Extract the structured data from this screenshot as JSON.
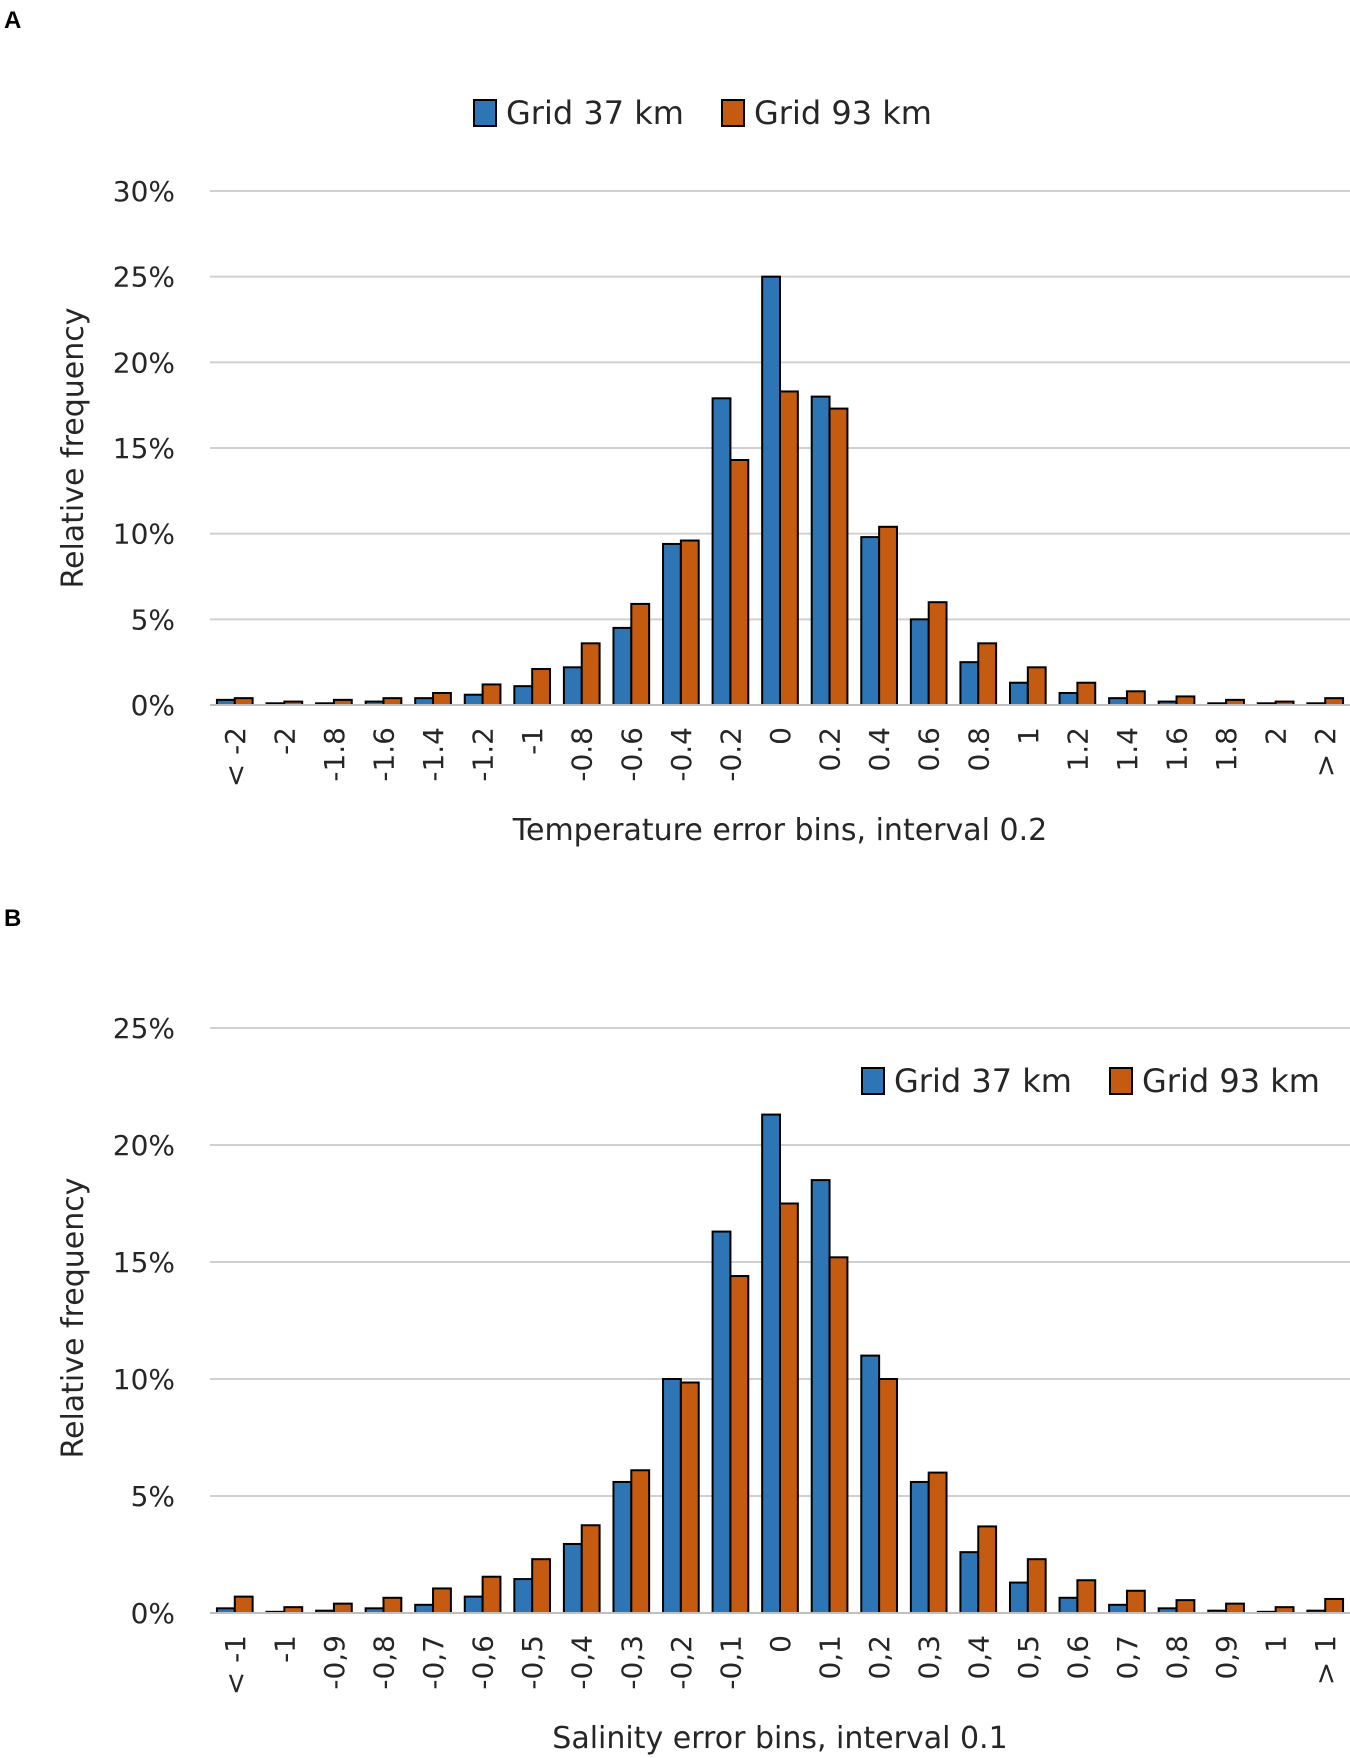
{
  "colors": {
    "series1": "#2e75b6",
    "series2": "#c55a11"
  },
  "chart_data": [
    {
      "type": "bar",
      "panel": "A",
      "xlabel": "Temperature error bins, interval 0.2",
      "ylabel": "Relative frequency",
      "ylim": [
        0,
        30
      ],
      "yticks": [
        "0%",
        "5%",
        "10%",
        "15%",
        "20%",
        "25%",
        "30%"
      ],
      "legend_position": "top-center",
      "categories": [
        "< -2",
        "-2",
        "-1.8",
        "-1.6",
        "-1.4",
        "-1.2",
        "-1",
        "-0.8",
        "-0.6",
        "-0.4",
        "-0.2",
        "0",
        "0.2",
        "0.4",
        "0.6",
        "0.8",
        "1",
        "1.2",
        "1.4",
        "1.6",
        "1.8",
        "2",
        "> 2"
      ],
      "series": [
        {
          "name": "Grid 37 km",
          "values": [
            0.3,
            0.1,
            0.1,
            0.2,
            0.4,
            0.6,
            1.1,
            2.2,
            4.5,
            9.4,
            17.9,
            25.0,
            18.0,
            9.8,
            5.0,
            2.5,
            1.3,
            0.7,
            0.4,
            0.2,
            0.1,
            0.1,
            0.1
          ]
        },
        {
          "name": "Grid 93 km",
          "values": [
            0.4,
            0.2,
            0.3,
            0.4,
            0.7,
            1.2,
            2.1,
            3.6,
            5.9,
            9.6,
            14.3,
            18.3,
            17.3,
            10.4,
            6.0,
            3.6,
            2.2,
            1.3,
            0.8,
            0.5,
            0.3,
            0.2,
            0.4
          ]
        }
      ]
    },
    {
      "type": "bar",
      "panel": "B",
      "xlabel": "Salinity error bins, interval 0.1",
      "ylabel": "Relative frequency",
      "ylim": [
        0,
        25
      ],
      "yticks": [
        "0%",
        "5%",
        "10%",
        "15%",
        "20%",
        "25%"
      ],
      "legend_position": "top-right",
      "categories": [
        "< -1",
        "-1",
        "-0,9",
        "-0,8",
        "-0,7",
        "-0,6",
        "-0,5",
        "-0,4",
        "-0,3",
        "-0,2",
        "-0,1",
        "0",
        "0,1",
        "0,2",
        "0,3",
        "0,4",
        "0,5",
        "0,6",
        "0,7",
        "0,8",
        "0,9",
        "1",
        "> 1"
      ],
      "series": [
        {
          "name": "Grid 37 km",
          "values": [
            0.2,
            0.05,
            0.1,
            0.2,
            0.35,
            0.7,
            1.45,
            2.95,
            5.6,
            10.0,
            16.3,
            21.3,
            18.5,
            11.0,
            5.6,
            2.6,
            1.3,
            0.65,
            0.35,
            0.2,
            0.1,
            0.05,
            0.1
          ]
        },
        {
          "name": "Grid 93 km",
          "values": [
            0.7,
            0.25,
            0.4,
            0.65,
            1.05,
            1.55,
            2.3,
            3.75,
            6.1,
            9.85,
            14.4,
            17.5,
            15.2,
            10.0,
            6.0,
            3.7,
            2.3,
            1.4,
            0.95,
            0.55,
            0.4,
            0.25,
            0.6
          ]
        }
      ]
    }
  ]
}
